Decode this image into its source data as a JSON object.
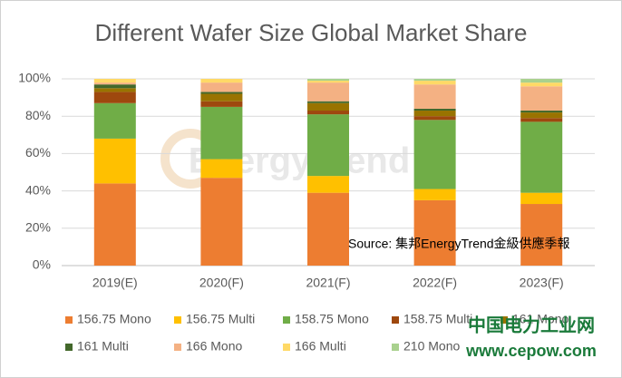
{
  "chart_data": {
    "type": "stacked_bar",
    "title": "Different Wafer Size Global Market Share",
    "categories": [
      "2019(E)",
      "2020(F)",
      "2021(F)",
      "2022(F)",
      "2023(F)"
    ],
    "series": [
      {
        "name": "156.75 Mono",
        "color": "#ed7d31",
        "values": [
          44,
          47,
          39,
          35,
          33
        ]
      },
      {
        "name": "156.75 Multi",
        "color": "#ffc000",
        "values": [
          24,
          10,
          9,
          6,
          6
        ]
      },
      {
        "name": "158.75 Mono",
        "color": "#70ad47",
        "values": [
          19,
          28,
          33,
          37,
          38
        ]
      },
      {
        "name": "158.75 Multi",
        "color": "#9e480e",
        "values": [
          6,
          3,
          2,
          2,
          2
        ]
      },
      {
        "name": "161 Mono",
        "color": "#997300",
        "values": [
          2,
          4,
          4,
          3,
          3
        ]
      },
      {
        "name": "161 Multi",
        "color": "#43682b",
        "values": [
          2,
          1,
          1,
          1,
          1
        ]
      },
      {
        "name": "166 Mono",
        "color": "#f4b183",
        "values": [
          1,
          5,
          10,
          13,
          13
        ]
      },
      {
        "name": "166 Multi",
        "color": "#ffd966",
        "values": [
          2,
          2,
          1,
          2,
          2
        ]
      },
      {
        "name": "210 Mono",
        "color": "#a9d18e",
        "values": [
          0,
          0,
          1,
          1,
          2
        ]
      }
    ],
    "ylim": [
      0,
      100
    ],
    "yticks": [
      {
        "value": 0,
        "label": "0%"
      },
      {
        "value": 20,
        "label": "20%"
      },
      {
        "value": 40,
        "label": "40%"
      },
      {
        "value": 60,
        "label": "60%"
      },
      {
        "value": 80,
        "label": "80%"
      },
      {
        "value": 100,
        "label": "100%"
      }
    ],
    "grid": true,
    "annotations": [
      "Source: 集邦EnergyTrend金級供應季報",
      "EnergyTrend",
      "中国电力工业网",
      "www.cepow.com"
    ]
  }
}
